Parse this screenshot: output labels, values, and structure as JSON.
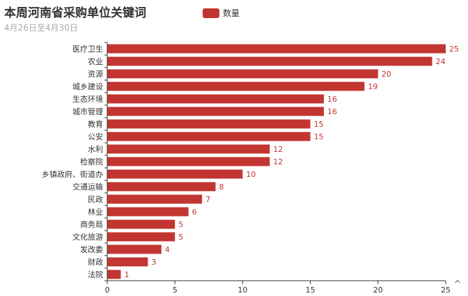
{
  "colors": {
    "bar": "#c23531",
    "axis": "#333333",
    "label": "#c23531"
  },
  "toolbox": {
    "restore_icon": "chevron-up-icon",
    "restore_glyph": "^"
  },
  "chart_data": {
    "type": "bar",
    "orientation": "horizontal",
    "title": "本周河南省采购单位关键词",
    "subtitle": "4月26日至4月30日",
    "legend": {
      "entries": [
        "数量"
      ],
      "placement": "top-center"
    },
    "categories": [
      "医疗卫生",
      "农业",
      "资源",
      "城乡建设",
      "生态环境",
      "城市管理",
      "教育",
      "公安",
      "水利",
      "检察院",
      "乡镇政府、街道办",
      "交通运输",
      "民政",
      "林业",
      "商务局",
      "文化旅游",
      "发改委",
      "财政",
      "法院"
    ],
    "series": [
      {
        "name": "数量",
        "values": [
          25,
          24,
          20,
          19,
          16,
          16,
          15,
          15,
          12,
          12,
          10,
          8,
          7,
          6,
          5,
          5,
          4,
          3,
          1
        ]
      }
    ],
    "xlim": [
      0,
      25
    ],
    "xticks": [
      0,
      5,
      10,
      15,
      20,
      25
    ],
    "grid": false,
    "data_labels": true
  }
}
